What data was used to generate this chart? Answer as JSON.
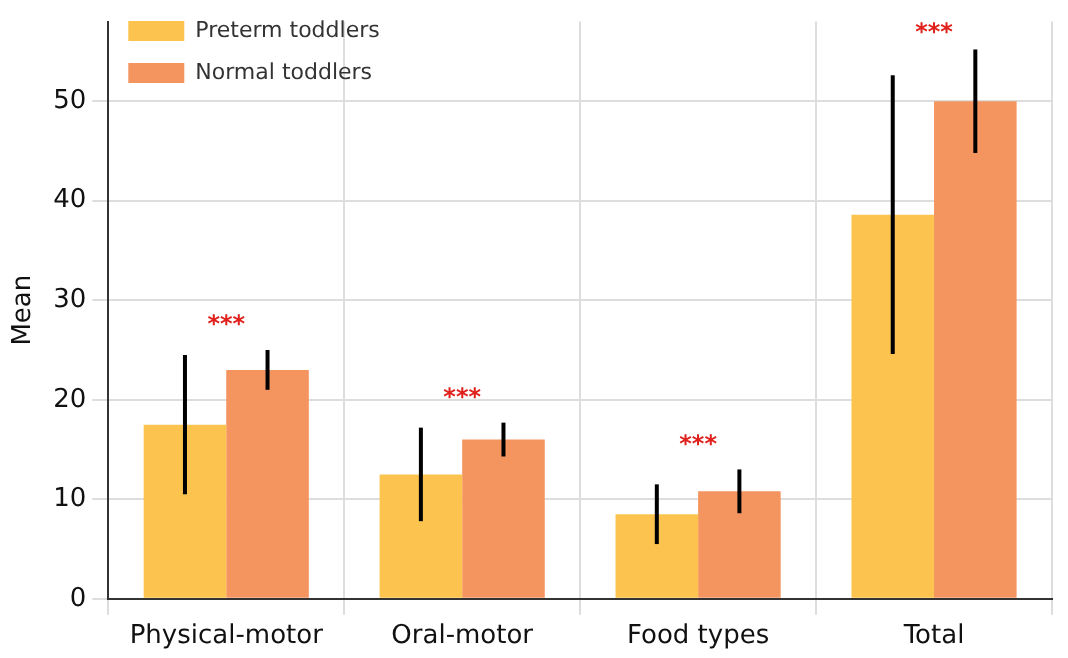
{
  "chart_data": {
    "type": "bar",
    "ylabel": "Mean",
    "categories": [
      "Physical-motor",
      "Oral-motor",
      "Food types",
      "Total"
    ],
    "series": [
      {
        "name": "Preterm toddlers",
        "color": "#fcc44e",
        "values": [
          17.5,
          12.5,
          8.5,
          38.6
        ],
        "errors": [
          7,
          4.7,
          3,
          14
        ]
      },
      {
        "name": "Normal toddlers",
        "color": "#f49560",
        "values": [
          23,
          16,
          10.8,
          50
        ],
        "errors": [
          2,
          1.7,
          2.2,
          5.2
        ]
      }
    ],
    "annotations": [
      "***",
      "***",
      "***",
      "***"
    ],
    "ylim": [
      0,
      58
    ],
    "yticks": [
      0,
      10,
      20,
      30,
      40,
      50
    ],
    "grid": true,
    "legend": "top left"
  }
}
